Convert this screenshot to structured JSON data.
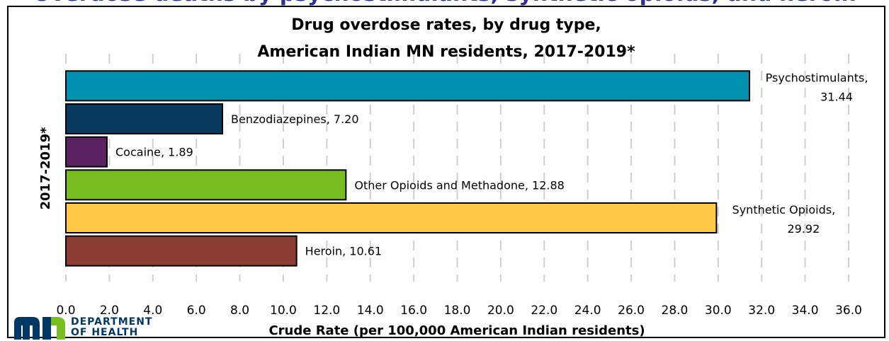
{
  "banner": {
    "text": "Overdose deaths by psychostimulants, synthetic opioids, and heroin"
  },
  "logo": {
    "line1": "DEPARTMENT",
    "line2": "OF HEALTH",
    "brand_color": "#003865"
  },
  "chart_data": {
    "type": "bar",
    "orientation": "horizontal",
    "title_lines": [
      "Drug overdose rates, by drug type,",
      "American Indian MN residents, 2017-2019*"
    ],
    "ylabel": "2017-2019*",
    "xlabel": "Crude Rate (per 100,000 American Indian residents)",
    "xlim": [
      0,
      36
    ],
    "xtick_step": 2,
    "xticks": [
      "0.0",
      "2.0",
      "4.0",
      "6.0",
      "8.0",
      "10.0",
      "12.0",
      "14.0",
      "16.0",
      "18.0",
      "20.0",
      "22.0",
      "24.0",
      "26.0",
      "28.0",
      "30.0",
      "32.0",
      "34.0",
      "36.0"
    ],
    "grid": "vertical dashed",
    "legend": "none",
    "series": [
      {
        "label": "Psychostimulants,",
        "value_text": "31.44",
        "value": 31.44,
        "color": "#0090b0",
        "label_style": "two-line"
      },
      {
        "label": "Benzodiazepines, 7.20",
        "value": 7.2,
        "color": "#073a5c",
        "label_style": "inline"
      },
      {
        "label": "Cocaine, 1.89",
        "value": 1.89,
        "color": "#5a2160",
        "label_style": "inline"
      },
      {
        "label": "Other Opioids and Methadone, 12.88",
        "value": 12.88,
        "color": "#78be21",
        "label_style": "inline"
      },
      {
        "label": "Synthetic Opioids,",
        "value_text": "29.92",
        "value": 29.92,
        "color": "#ffc845",
        "label_style": "two-line"
      },
      {
        "label": "Heroin, 10.61",
        "value": 10.61,
        "color": "#8b3e2f",
        "label_style": "inline"
      }
    ]
  }
}
